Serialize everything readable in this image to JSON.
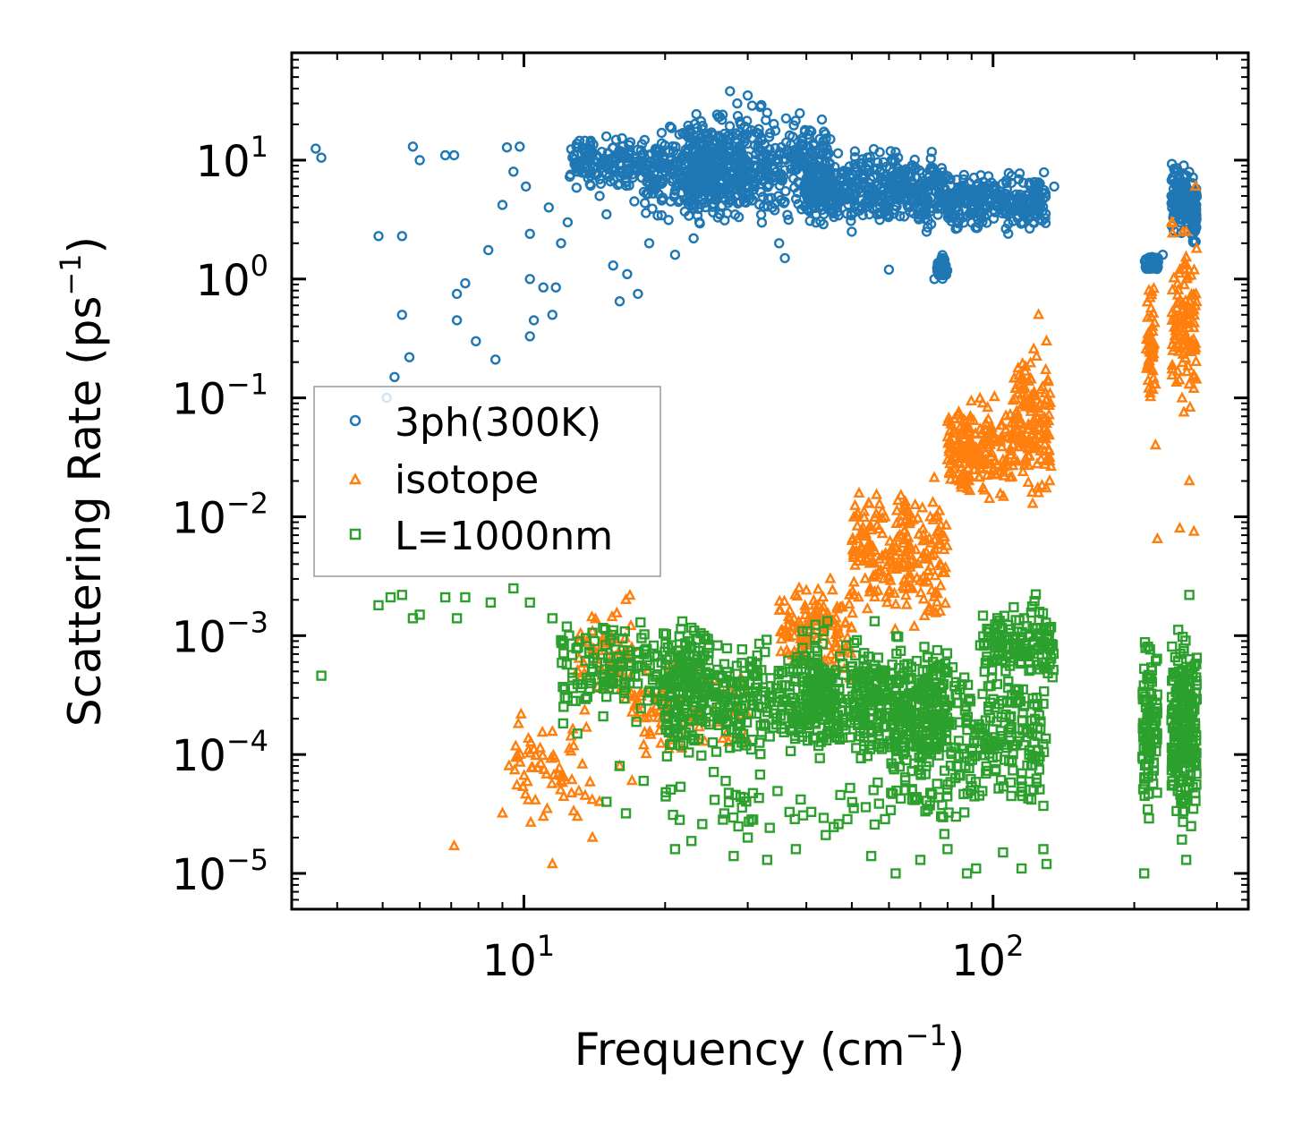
{
  "chart_data": {
    "type": "scatter",
    "xscale": "log",
    "yscale": "log",
    "xlim": [
      3.2,
      350
    ],
    "ylim": [
      5e-06,
      80
    ],
    "xlabel": "Frequency (cm",
    "xlabel_sup": "−1",
    "xlabel_end": ")",
    "ylabel": "Scattering Rate (ps",
    "ylabel_sup": "−1",
    "ylabel_end": ")",
    "x_ticks": [
      {
        "value": 10,
        "base": "10",
        "exp": "1"
      },
      {
        "value": 100,
        "base": "10",
        "exp": "2"
      }
    ],
    "y_ticks": [
      {
        "value": 10,
        "base": "10",
        "exp": "1"
      },
      {
        "value": 1,
        "base": "10",
        "exp": "0"
      },
      {
        "value": 0.1,
        "base": "10",
        "exp": "−1"
      },
      {
        "value": 0.01,
        "base": "10",
        "exp": "−2"
      },
      {
        "value": 0.001,
        "base": "10",
        "exp": "−3"
      },
      {
        "value": 0.0001,
        "base": "10",
        "exp": "−4"
      },
      {
        "value": 1e-05,
        "base": "10",
        "exp": "−5"
      }
    ],
    "legend_position": "center-left",
    "series": [
      {
        "name": "3ph(300K)",
        "marker": "circle",
        "color": "#1f77b4",
        "points": [
          [
            3.6,
            12.5
          ],
          [
            3.7,
            10.5
          ],
          [
            4.9,
            2.3
          ],
          [
            5.5,
            2.3
          ],
          [
            5.8,
            13.0
          ],
          [
            6.0,
            10.0
          ],
          [
            6.8,
            11.0
          ],
          [
            7.1,
            11.0
          ],
          [
            5.5,
            0.5
          ],
          [
            5.7,
            0.22
          ],
          [
            5.3,
            0.15
          ],
          [
            5.1,
            0.1
          ],
          [
            7.2,
            0.75
          ],
          [
            7.5,
            0.92
          ],
          [
            7.2,
            0.45
          ],
          [
            7.9,
            0.3
          ],
          [
            8.4,
            1.75
          ],
          [
            8.7,
            0.21
          ],
          [
            9.0,
            4.2
          ],
          [
            9.2,
            12.8
          ],
          [
            9.5,
            8.0
          ],
          [
            9.8,
            13.0
          ],
          [
            10.1,
            6.0
          ],
          [
            10.3,
            2.4
          ],
          [
            10.3,
            1.0
          ],
          [
            10.3,
            0.33
          ],
          [
            10.5,
            0.45
          ],
          [
            11.0,
            0.85
          ],
          [
            11.5,
            0.5
          ],
          [
            11.7,
            0.85
          ],
          [
            11.3,
            4.0
          ],
          [
            12.0,
            2.0
          ],
          [
            12.4,
            3.0
          ],
          [
            13.0,
            8.0
          ],
          [
            13.5,
            11.5
          ],
          [
            14.5,
            5.0
          ],
          [
            15.0,
            3.5
          ],
          [
            15.5,
            1.3
          ],
          [
            16.0,
            0.65
          ],
          [
            16.6,
            1.1
          ],
          [
            17.2,
            4.5
          ],
          [
            17.5,
            0.75
          ],
          [
            18.5,
            2.0
          ],
          [
            19.5,
            8.5
          ],
          [
            21.0,
            1.6
          ],
          [
            23.0,
            2.2
          ],
          [
            25.0,
            5.0
          ],
          [
            26.0,
            23.0
          ],
          [
            27.5,
            38.0
          ],
          [
            28.5,
            30.0
          ],
          [
            29.0,
            20.0
          ],
          [
            30.0,
            35.0
          ],
          [
            31.0,
            9.0
          ],
          [
            33.0,
            25.0
          ],
          [
            35.0,
            2.0
          ],
          [
            36.0,
            1.5
          ],
          [
            38.0,
            12.0
          ],
          [
            40.0,
            7.0
          ],
          [
            42.0,
            3.5
          ],
          [
            45.0,
            15.0
          ],
          [
            48.0,
            8.0
          ],
          [
            50.0,
            2.5
          ],
          [
            55.0,
            5.0
          ],
          [
            60.0,
            1.2
          ],
          [
            65.0,
            6.0
          ],
          [
            70.0,
            4.0
          ],
          [
            75.0,
            1.0
          ],
          [
            78.0,
            1.5
          ],
          [
            85.0,
            5.0
          ],
          [
            95.0,
            6.0
          ],
          [
            105.0,
            4.5
          ],
          [
            115.0,
            3.0
          ],
          [
            125.0,
            6.5
          ],
          [
            135.0,
            6.0
          ],
          [
            220.0,
            1.3
          ],
          [
            230.0,
            1.6
          ],
          [
            240.0,
            5.0
          ],
          [
            255.0,
            9.0
          ],
          [
            260.0,
            3.0
          ],
          [
            268.0,
            5.0
          ]
        ],
        "clusters": [
          {
            "x": [
              12.5,
              18.0
            ],
            "y": [
              5.0,
              18.0
            ],
            "n": 160
          },
          {
            "x": [
              18.0,
              30.0
            ],
            "y": [
              2.5,
              25.0
            ],
            "n": 320
          },
          {
            "x": [
              22.0,
              45.0
            ],
            "y": [
              2.0,
              35.0
            ],
            "n": 460
          },
          {
            "x": [
              40.0,
              80.0
            ],
            "y": [
              2.2,
              15.0
            ],
            "n": 460
          },
          {
            "x": [
              80.0,
              130.0
            ],
            "y": [
              2.2,
              9.0
            ],
            "n": 280
          },
          {
            "x": [
              76.0,
              80.0
            ],
            "y": [
              0.9,
              1.8
            ],
            "n": 40
          },
          {
            "x": [
              210.0,
              225.0
            ],
            "y": [
              1.1,
              1.7
            ],
            "n": 50
          },
          {
            "x": [
              240.0,
              262.0
            ],
            "y": [
              2.0,
              11.0
            ],
            "n": 120
          },
          {
            "x": [
              264.0,
              272.0
            ],
            "y": [
              1.5,
              8.0
            ],
            "n": 60
          }
        ]
      },
      {
        "name": "isotope",
        "marker": "triangle",
        "color": "#ff7f0e",
        "points": [
          [
            7.1,
            1.7e-05
          ],
          [
            9.0,
            3.2e-05
          ],
          [
            9.3,
            8e-05
          ],
          [
            10.5,
            0.00011
          ],
          [
            11.0,
            3e-05
          ],
          [
            11.5,
            1.2e-05
          ],
          [
            12.0,
            6e-05
          ],
          [
            13.0,
            3e-05
          ],
          [
            14.0,
            2e-05
          ],
          [
            14.5,
            4e-05
          ],
          [
            16.0,
            8e-05
          ],
          [
            16.5,
            0.002
          ],
          [
            17.0,
            6e-05
          ],
          [
            18.0,
            0.00012
          ],
          [
            19.0,
            0.0003
          ],
          [
            40.0,
            0.0024
          ],
          [
            45.0,
            0.003
          ],
          [
            55.0,
            0.005
          ],
          [
            65.0,
            0.012
          ],
          [
            80.0,
            0.03
          ],
          [
            95.0,
            0.09
          ],
          [
            105.0,
            0.03
          ],
          [
            115.0,
            0.12
          ],
          [
            125.0,
            0.5
          ],
          [
            130.0,
            0.3
          ],
          [
            132.0,
            0.02
          ],
          [
            215.0,
            0.8
          ],
          [
            218.0,
            0.12
          ],
          [
            222.0,
            0.04
          ],
          [
            224.0,
            0.0065
          ],
          [
            250.0,
            0.008
          ],
          [
            258.0,
            2.5
          ],
          [
            262.0,
            0.02
          ],
          [
            268.0,
            0.0075
          ],
          [
            270.0,
            6.0
          ]
        ],
        "clusters": [
          {
            "x": [
              9.5,
              14.0
            ],
            "y": [
              2e-05,
              0.0003
            ],
            "n": 60
          },
          {
            "x": [
              13.0,
              17.0
            ],
            "y": [
              0.00015,
              0.003
            ],
            "n": 60
          },
          {
            "x": [
              17.0,
              30.0
            ],
            "y": [
              8e-05,
              0.0008
            ],
            "n": 90
          },
          {
            "x": [
              35.0,
              50.0
            ],
            "y": [
              0.0003,
              0.004
            ],
            "n": 130
          },
          {
            "x": [
              50.0,
              80.0
            ],
            "y": [
              0.0008,
              0.03
            ],
            "n": 230
          },
          {
            "x": [
              80.0,
              110.0
            ],
            "y": [
              0.01,
              0.12
            ],
            "n": 200
          },
          {
            "x": [
              110.0,
              133.0
            ],
            "y": [
              0.01,
              0.4
            ],
            "n": 150
          },
          {
            "x": [
              212.0,
              222.0
            ],
            "y": [
              0.05,
              1.5
            ],
            "n": 50
          },
          {
            "x": [
              240.0,
              272.0
            ],
            "y": [
              0.05,
              4.0
            ],
            "n": 120
          }
        ]
      },
      {
        "name": "L=1000nm",
        "marker": "square",
        "color": "#2ca02c",
        "points": [
          [
            3.7,
            0.00046
          ],
          [
            4.9,
            0.0018
          ],
          [
            5.2,
            0.0021
          ],
          [
            5.5,
            0.0022
          ],
          [
            5.8,
            0.0014
          ],
          [
            6.0,
            0.0015
          ],
          [
            6.8,
            0.0021
          ],
          [
            7.2,
            0.0014
          ],
          [
            7.5,
            0.0021
          ],
          [
            8.5,
            0.0019
          ],
          [
            9.5,
            0.0025
          ],
          [
            10.3,
            0.0019
          ],
          [
            11.5,
            0.0014
          ],
          [
            13.0,
            0.00015
          ],
          [
            15.0,
            4e-05
          ],
          [
            16.0,
            8e-05
          ],
          [
            16.5,
            3.2e-05
          ],
          [
            18.0,
            6e-05
          ],
          [
            21.0,
            1.6e-05
          ],
          [
            24.0,
            2.6e-05
          ],
          [
            28.0,
            1.4e-05
          ],
          [
            30.0,
            2e-05
          ],
          [
            33.0,
            1.3e-05
          ],
          [
            38.0,
            1.6e-05
          ],
          [
            44.0,
            2.1e-05
          ],
          [
            55.0,
            1.4e-05
          ],
          [
            62.0,
            1e-05
          ],
          [
            70.0,
            1.3e-05
          ],
          [
            80.0,
            1.6e-05
          ],
          [
            88.0,
            1e-05
          ],
          [
            92.0,
            1.1e-05
          ],
          [
            105.0,
            1.5e-05
          ],
          [
            115.0,
            1.1e-05
          ],
          [
            128.0,
            1.6e-05
          ],
          [
            130.0,
            1.2e-05
          ],
          [
            210.0,
            1e-05
          ],
          [
            215.0,
            2.9e-05
          ],
          [
            258.0,
            1.3e-05
          ],
          [
            262.0,
            0.0022
          ]
        ],
        "clusters": [
          {
            "x": [
              12.0,
              25.0
            ],
            "y": [
              0.00015,
              0.0018
            ],
            "n": 200
          },
          {
            "x": [
              20.0,
              45.0
            ],
            "y": [
              6e-05,
              0.0015
            ],
            "n": 380
          },
          {
            "x": [
              40.0,
              80.0
            ],
            "y": [
              6e-05,
              0.0014
            ],
            "n": 420
          },
          {
            "x": [
              60.0,
              130.0
            ],
            "y": [
              2e-05,
              0.0012
            ],
            "n": 320
          },
          {
            "x": [
              95.0,
              135.0
            ],
            "y": [
              0.0003,
              0.0025
            ],
            "n": 140
          },
          {
            "x": [
              20.0,
              80.0
            ],
            "y": [
              1.5e-05,
              8e-05
            ],
            "n": 60
          },
          {
            "x": [
              208.0,
              224.0
            ],
            "y": [
              2e-05,
              0.0013
            ],
            "n": 100
          },
          {
            "x": [
              240.0,
              272.0
            ],
            "y": [
              1.5e-05,
              0.0018
            ],
            "n": 220
          }
        ]
      }
    ]
  }
}
